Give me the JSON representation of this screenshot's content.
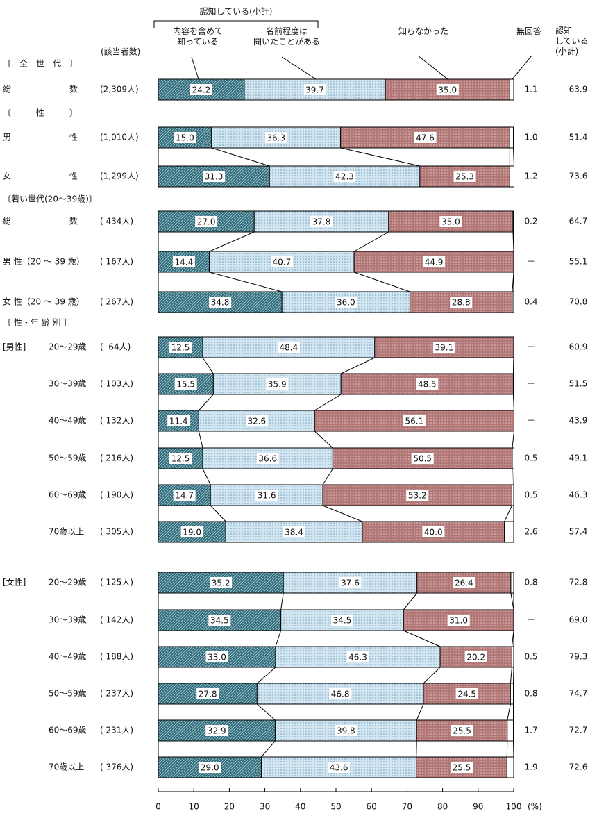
{
  "chart_data": {
    "type": "stacked-bar-100",
    "brace_label": "認知している(小計)",
    "count_header": "(該当者数)",
    "subtotal_header": "認知\nしている\n(小計)",
    "sections": [
      "〔　全　世　代　〕",
      "〔　　　性　　　〕",
      "〔若い世代(20～39歳)〕",
      "〔 性・年 齢 別 〕"
    ],
    "group_labels": [
      "[男性]",
      "[女性]"
    ],
    "categories": [
      "総　　　　　　　数",
      "男　　　　　　　性",
      "女　　　　　　　性",
      "総　　　　　　　数",
      "男 性（20 ～ 39 歳）",
      "女 性（20 ～ 39 歳）",
      "20～29歳",
      "30～39歳",
      "40～49歳",
      "50～59歳",
      "60～69歳",
      "70歳以上",
      "20～29歳",
      "30～39歳",
      "40～49歳",
      "50～59歳",
      "60～69歳",
      "70歳以上"
    ],
    "counts": [
      "(2,309人)",
      "(1,010人)",
      "(1,299人)",
      "( 434人)",
      "( 167人)",
      "( 267人)",
      "(  64人)",
      "( 103人)",
      "( 132人)",
      "( 216人)",
      "( 190人)",
      "( 305人)",
      "( 125人)",
      "( 142人)",
      "( 188人)",
      "( 237人)",
      "( 231人)",
      "( 376人)"
    ],
    "series": [
      {
        "name": "内容を含めて\n知っている",
        "color": "#2f6b7a",
        "values": [
          24.2,
          15.0,
          31.3,
          27.0,
          14.4,
          34.8,
          12.5,
          15.5,
          11.4,
          12.5,
          14.7,
          19.0,
          35.2,
          34.5,
          33.0,
          27.8,
          32.9,
          29.0
        ],
        "value_labels": [
          "24.2",
          "15.0",
          "31.3",
          "27.0",
          "14.4",
          "34.8",
          "12.5",
          "15.5",
          "11.4",
          "12.5",
          "14.7",
          "19.0",
          "35.2",
          "34.5",
          "33.0",
          "27.8",
          "32.9",
          "29.0"
        ]
      },
      {
        "name": "名前程度は\n聞いたことがある",
        "color": "#d2e6f2",
        "values": [
          39.7,
          36.3,
          42.3,
          37.8,
          40.7,
          36.0,
          48.4,
          35.9,
          32.6,
          36.6,
          31.6,
          38.4,
          37.6,
          34.5,
          46.3,
          46.8,
          39.8,
          43.6
        ],
        "value_labels": [
          "39.7",
          "36.3",
          "42.3",
          "37.8",
          "40.7",
          "36.0",
          "48.4",
          "35.9",
          "32.6",
          "36.6",
          "31.6",
          "38.4",
          "37.6",
          "34.5",
          "46.3",
          "46.8",
          "39.8",
          "43.6"
        ]
      },
      {
        "name": "知らなかった",
        "color": "#b27878",
        "values": [
          35.0,
          47.6,
          25.3,
          35.0,
          44.9,
          28.8,
          39.1,
          48.5,
          56.1,
          50.5,
          53.2,
          40.0,
          26.4,
          31.0,
          20.2,
          24.5,
          25.5,
          25.5
        ],
        "value_labels": [
          "35.0",
          "47.6",
          "25.3",
          "35.0",
          "44.9",
          "28.8",
          "39.1",
          "48.5",
          "56.1",
          "50.5",
          "53.2",
          "40.0",
          "26.4",
          "31.0",
          "20.2",
          "24.5",
          "25.5",
          "25.5"
        ]
      },
      {
        "name": "無回答",
        "color": "#ffffff",
        "values": [
          1.1,
          1.0,
          1.2,
          0.2,
          null,
          0.4,
          null,
          null,
          null,
          0.5,
          0.5,
          2.6,
          0.8,
          null,
          0.5,
          0.8,
          1.7,
          1.9
        ],
        "value_labels": [
          "1.1",
          "1.0",
          "1.2",
          "0.2",
          "－",
          "0.4",
          "－",
          "－",
          "－",
          "0.5",
          "0.5",
          "2.6",
          "0.8",
          "－",
          "0.5",
          "0.8",
          "1.7",
          "1.9"
        ]
      }
    ],
    "subtotal": {
      "values": [
        63.9,
        51.4,
        73.6,
        64.7,
        55.1,
        70.8,
        60.9,
        51.5,
        43.9,
        49.1,
        46.3,
        57.4,
        72.8,
        69.0,
        79.3,
        74.7,
        72.7,
        72.6
      ],
      "value_labels": [
        "63.9",
        "51.4",
        "73.6",
        "64.7",
        "55.1",
        "70.8",
        "60.9",
        "51.5",
        "43.9",
        "49.1",
        "46.3",
        "57.4",
        "72.8",
        "69.0",
        "79.3",
        "74.7",
        "72.7",
        "72.6"
      ]
    },
    "xlim": [
      0,
      100
    ],
    "xticks": [
      0,
      10,
      20,
      30,
      40,
      50,
      60,
      70,
      80,
      90,
      100
    ],
    "xlabel": "(%)"
  }
}
